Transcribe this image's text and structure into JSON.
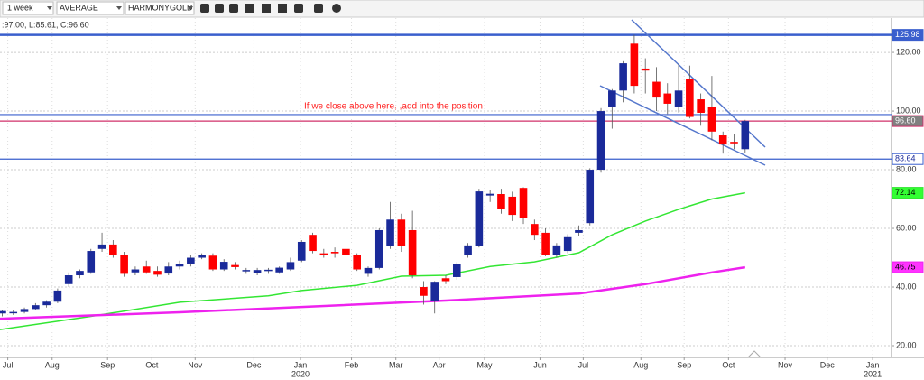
{
  "toolbar": {
    "interval": "1 week",
    "style": "AVERAGE",
    "symbol": "HARMONYGOLD",
    "info": ":97.00, L:85.61, C:96.60"
  },
  "chart_data": {
    "type": "candlestick",
    "annotation": "If we close above here, ,add into the position",
    "up_color": "#1a2a9a",
    "down_color": "#ff0000",
    "x": [
      0,
      1,
      2,
      3,
      4,
      5,
      6,
      7,
      8,
      9,
      10,
      11,
      12,
      13,
      14,
      15,
      16,
      17,
      18,
      19,
      20,
      21,
      22,
      23,
      24,
      25,
      26,
      27,
      28,
      29,
      30,
      31,
      32,
      33,
      34,
      35,
      36,
      37,
      38,
      39,
      40,
      41,
      42,
      43,
      44,
      45,
      46,
      47,
      48,
      49,
      50,
      51,
      52,
      53,
      54,
      55,
      56,
      57,
      58,
      59,
      60,
      61,
      62,
      63,
      64,
      65,
      66,
      67
    ],
    "open": [
      31,
      31.2,
      31.5,
      32.5,
      33.8,
      35,
      41,
      44,
      45,
      53,
      54.5,
      51,
      45,
      47,
      45.5,
      44.6,
      47,
      48,
      50,
      50.7,
      46,
      47.5,
      45.5,
      44.8,
      45.6,
      45,
      46,
      49,
      57.8,
      51.5,
      52,
      53,
      50.8,
      44.5,
      46.5,
      54,
      63,
      59.4,
      40,
      35.4,
      43,
      43.4,
      51,
      54,
      71.2,
      71.7,
      70.8,
      73.8,
      61.5,
      58.5,
      50.8,
      52.3,
      58.5,
      61.8,
      80,
      101.5,
      107,
      123,
      114.5,
      110,
      106,
      101.5,
      110.8,
      104,
      101.5,
      91.7,
      89.5,
      87
    ],
    "high": [
      32,
      32,
      33,
      34.5,
      35.5,
      39.5,
      45,
      46,
      53,
      58.5,
      56,
      52,
      47,
      49,
      47,
      48.5,
      49,
      51,
      51.5,
      51.5,
      49.5,
      48.5,
      46.5,
      46.5,
      46.5,
      47,
      50,
      56,
      58.5,
      53,
      53.5,
      54,
      51.5,
      47,
      60,
      69,
      65,
      66,
      42,
      42,
      44,
      48.5,
      55,
      73.5,
      73,
      73.5,
      72.5,
      74,
      63,
      60,
      55,
      58,
      61,
      80.5,
      101,
      107.5,
      117,
      126,
      118,
      115,
      109.5,
      116,
      115.5,
      106,
      112,
      93,
      92,
      97
    ],
    "low": [
      30,
      30.5,
      31,
      32,
      33,
      34.5,
      40,
      43,
      44.5,
      52,
      50,
      43.5,
      44,
      44.5,
      43.5,
      44,
      46,
      47,
      49.5,
      45.5,
      45.5,
      46,
      44.5,
      44,
      44.5,
      44.5,
      45.5,
      48.5,
      51.5,
      50,
      50,
      50,
      45.5,
      43.5,
      46,
      53,
      52,
      43,
      34,
      31,
      41,
      42.5,
      50,
      53.5,
      69,
      65,
      62.5,
      61.5,
      56,
      50.5,
      50,
      51.5,
      57.5,
      61,
      79,
      94,
      103,
      106,
      106,
      100,
      99,
      99.5,
      97.5,
      95,
      90,
      85.5,
      87,
      85.61
    ],
    "close": [
      31.8,
      31.5,
      32.5,
      33.8,
      35,
      38.8,
      44,
      45.5,
      52.3,
      54.5,
      51,
      44.5,
      46,
      45,
      44.2,
      47,
      47.8,
      50,
      51,
      46,
      48.6,
      46.8,
      45.8,
      45.8,
      45.9,
      46.6,
      48.5,
      55.4,
      52.3,
      51,
      51.5,
      50.8,
      46,
      46.5,
      59.4,
      63,
      54,
      44,
      37,
      41.8,
      42,
      48,
      54.2,
      72.6,
      71.8,
      66.5,
      64.6,
      63.4,
      57.8,
      51,
      54.2,
      57,
      59.4,
      80,
      100,
      107,
      116.3,
      108.6,
      113.8,
      104.6,
      102.5,
      107,
      98,
      99.4,
      93,
      88.6,
      89,
      96.6
    ],
    "lines": [
      {
        "color": "#33e633",
        "x": [
          -0.2,
          8,
          16,
          24,
          27,
          32,
          36,
          40,
          44,
          48,
          52,
          55,
          58,
          61,
          64,
          67
        ],
        "values": [
          25.5,
          30,
          34.8,
          37,
          38.8,
          40.6,
          43.7,
          44,
          47,
          48.6,
          51.7,
          57.8,
          62.5,
          66.5,
          70,
          72.14
        ]
      },
      {
        "color": "#ee22ee",
        "x": [
          -0.2,
          8,
          16,
          27,
          40,
          52,
          58,
          64,
          67
        ],
        "values": [
          29.2,
          30.3,
          31.4,
          33.2,
          35.4,
          37.8,
          41,
          45,
          46.75
        ]
      }
    ],
    "levels": [
      {
        "value": 125.98,
        "label": "125.98",
        "color": "#3a5fcd",
        "line": true,
        "label_bg": "#3a5fcd",
        "label_fg": "#ffffff"
      },
      {
        "value": 98.8,
        "color": "#3a5fcd",
        "line": true
      },
      {
        "value": 96.6,
        "label": "96.60",
        "color": "#d0306a",
        "line": true,
        "label_bg": "#808080",
        "label_fg": "#ffffff"
      },
      {
        "value": 83.64,
        "label": "83.64",
        "color": "#3a5fcd",
        "line": true,
        "label_bg": "#ffffff",
        "label_fg": "#1a2a9a"
      },
      {
        "value": 72.14,
        "label": "72.14",
        "color": "#33e633",
        "line": false,
        "label_bg": "#33ff33",
        "label_fg": "#000000"
      },
      {
        "value": 46.75,
        "label": "46.75",
        "color": "#ee22ee",
        "line": false,
        "label_bg": "#ff33ff",
        "label_fg": "#000000"
      }
    ],
    "ylim": [
      16,
      131.1
    ],
    "yticks": [
      {
        "value": 20,
        "label": "20.00"
      },
      {
        "value": 40,
        "label": "40.00"
      },
      {
        "value": 60,
        "label": "60.00"
      },
      {
        "value": 80,
        "label": "80.00"
      },
      {
        "value": 100,
        "label": "100.00"
      },
      {
        "value": 120,
        "label": "120.00"
      }
    ],
    "xlim": [
      -0.2,
      80.2
    ],
    "xticks": [
      {
        "value": 0.5,
        "label": "Jul"
      },
      {
        "value": 4.5,
        "label": "Aug"
      },
      {
        "value": 9.5,
        "label": "Sep"
      },
      {
        "value": 13.5,
        "label": "Oct"
      },
      {
        "value": 17.4,
        "label": "Nov"
      },
      {
        "value": 22.7,
        "label": "Dec"
      },
      {
        "value": 26.9,
        "label": "Jan"
      },
      {
        "value": 31.5,
        "label": "Feb"
      },
      {
        "value": 35.5,
        "label": "Mar"
      },
      {
        "value": 39.4,
        "label": "Apr"
      },
      {
        "value": 43.5,
        "label": "May"
      },
      {
        "value": 48.5,
        "label": "Jun"
      },
      {
        "value": 52.4,
        "label": "Jul"
      },
      {
        "value": 57.6,
        "label": "Aug"
      },
      {
        "value": 61.5,
        "label": "Sep"
      },
      {
        "value": 65.5,
        "label": "Oct"
      },
      {
        "value": 70.6,
        "label": "Nov"
      },
      {
        "value": 74.4,
        "label": "Dec"
      },
      {
        "value": 78.5,
        "label": "Jan"
      }
    ],
    "year_ticks": [
      {
        "value": 26.9,
        "label": "2020"
      },
      {
        "value": 78.5,
        "label": "2021"
      }
    ],
    "grid": true
  }
}
